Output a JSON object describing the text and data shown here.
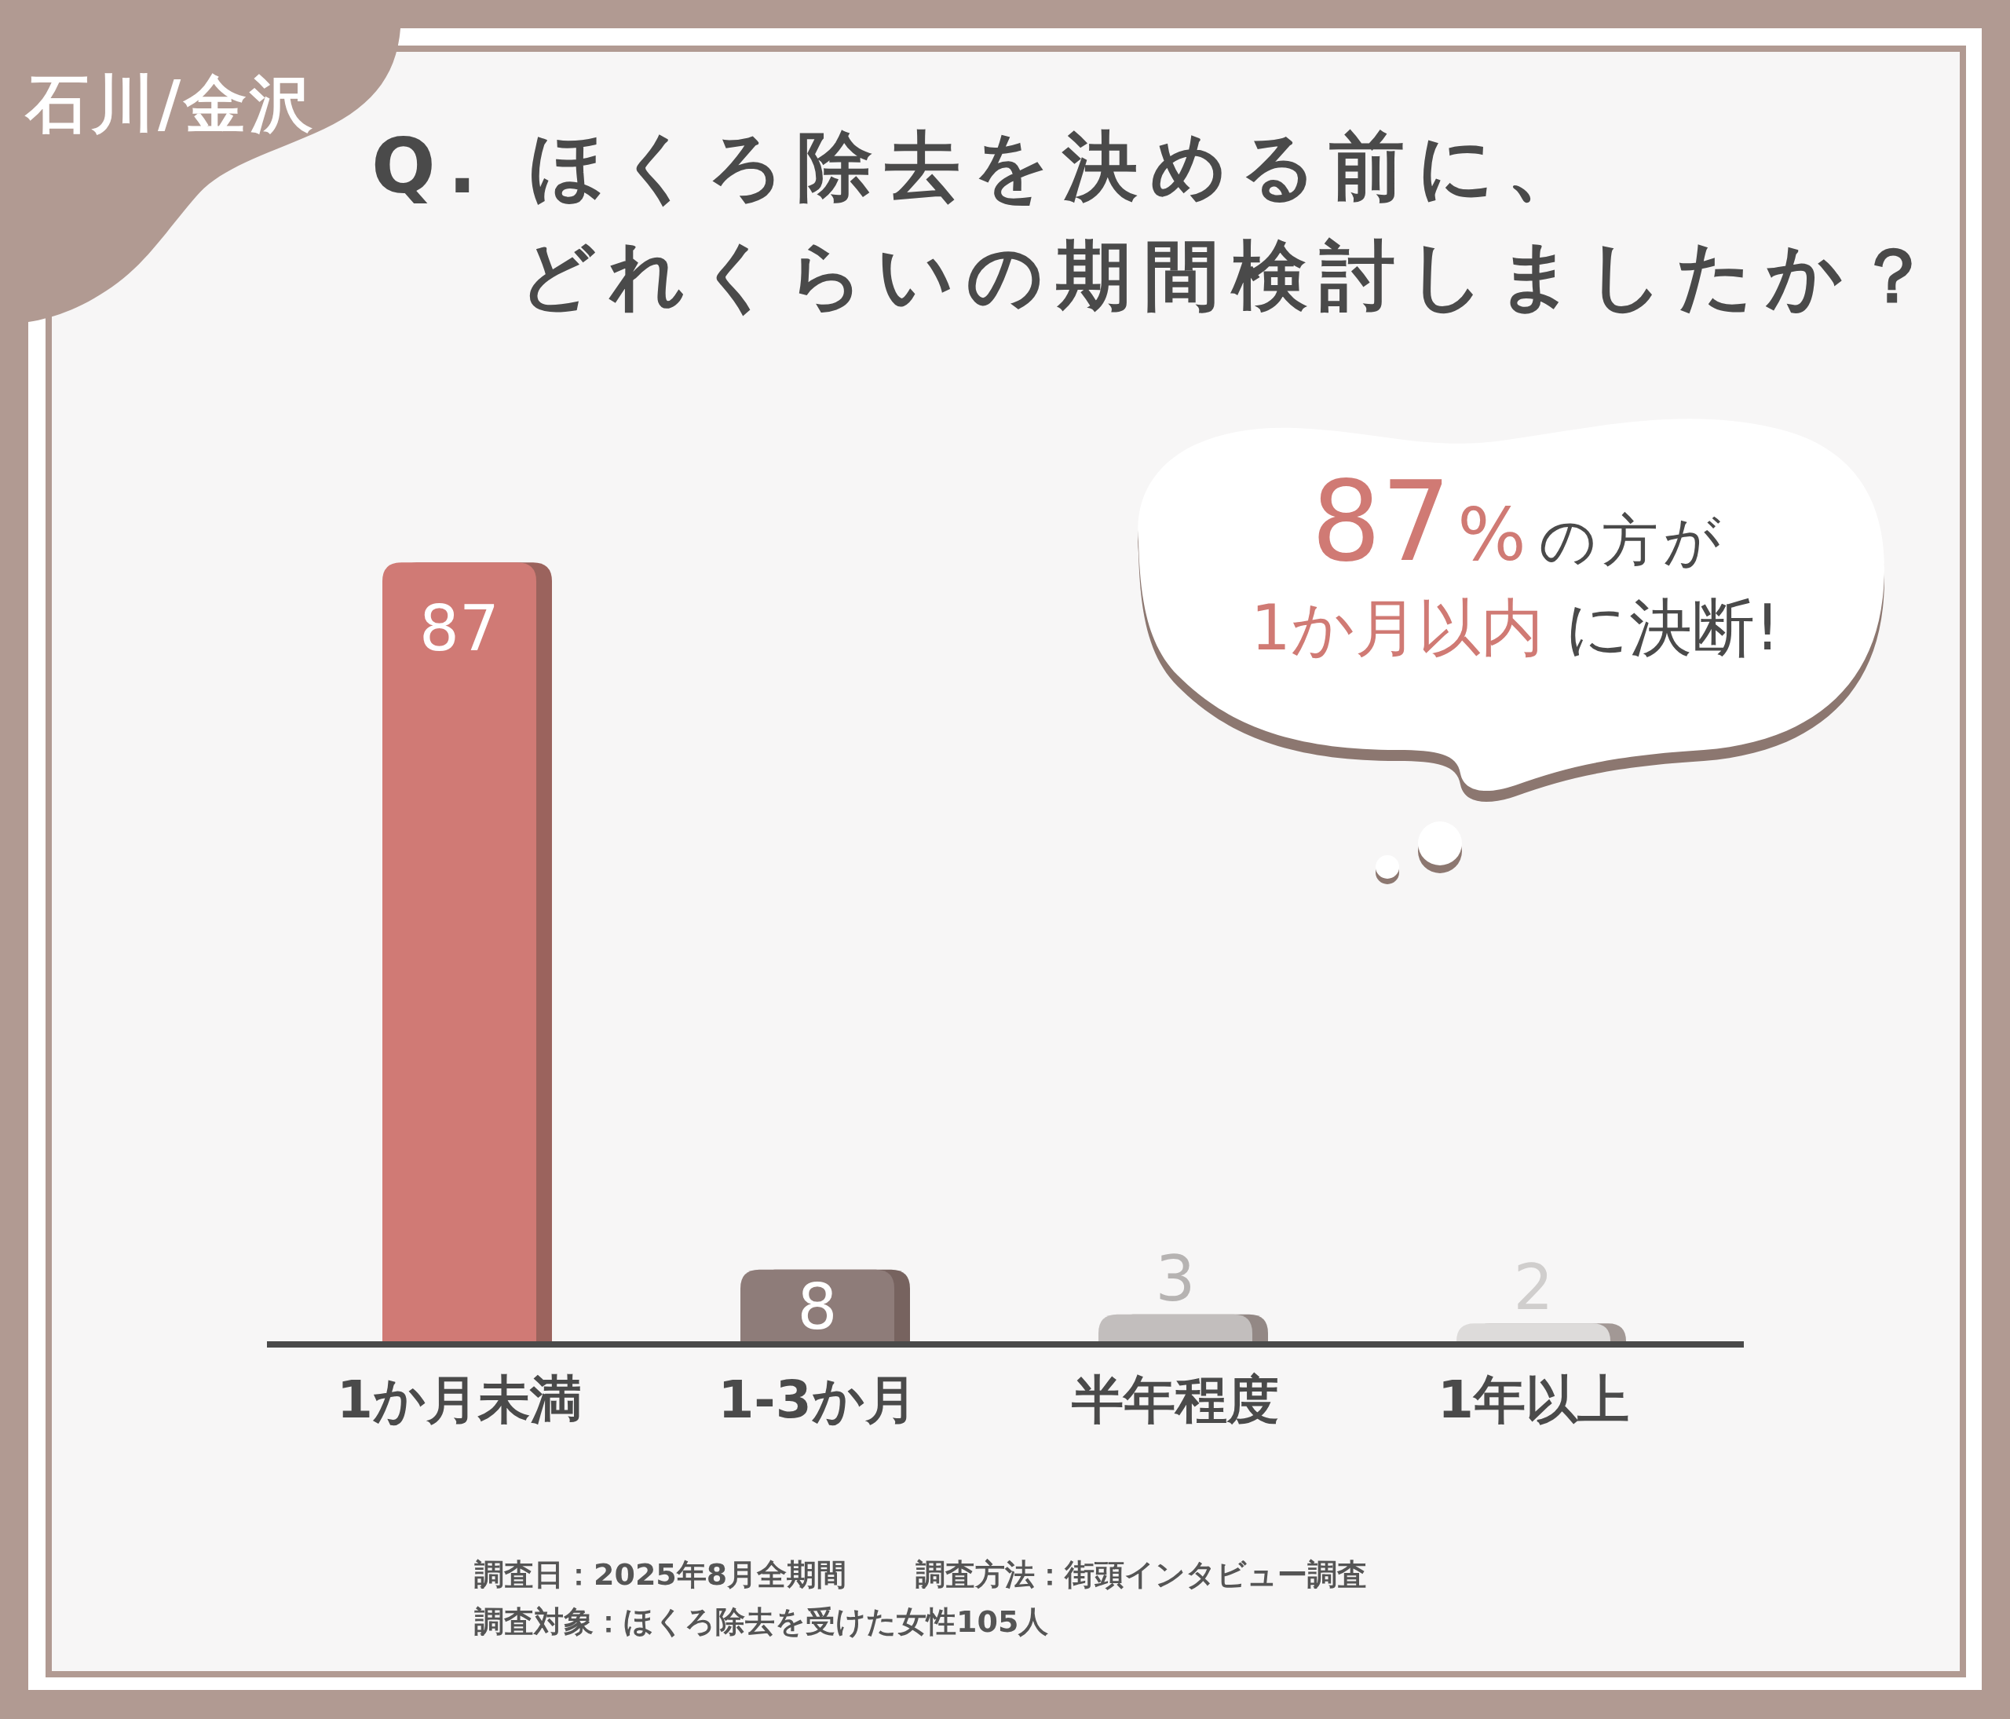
{
  "chart_data": {
    "type": "bar",
    "title": "Q. ほくろ除去を決める前に、どれくらいの期間検討しましたか？",
    "subtitle": "石川/金沢",
    "categories": [
      "1か月未満",
      "1-3か月",
      "半年程度",
      "1年以上"
    ],
    "values": [
      87,
      8,
      3,
      2
    ],
    "colors": [
      "#d07a74",
      "#8e7b79",
      "#c2bebd",
      "#dddbda"
    ],
    "data_labels": true,
    "annotations": [
      "87%",
      "の方が",
      "1か月以内",
      "に決断!",
      "調査日：2025年8月全期間",
      "調査方法：街頭インタビュー調査",
      "調査対象：ほくろ除去を受けた女性105人"
    ]
  }
}
